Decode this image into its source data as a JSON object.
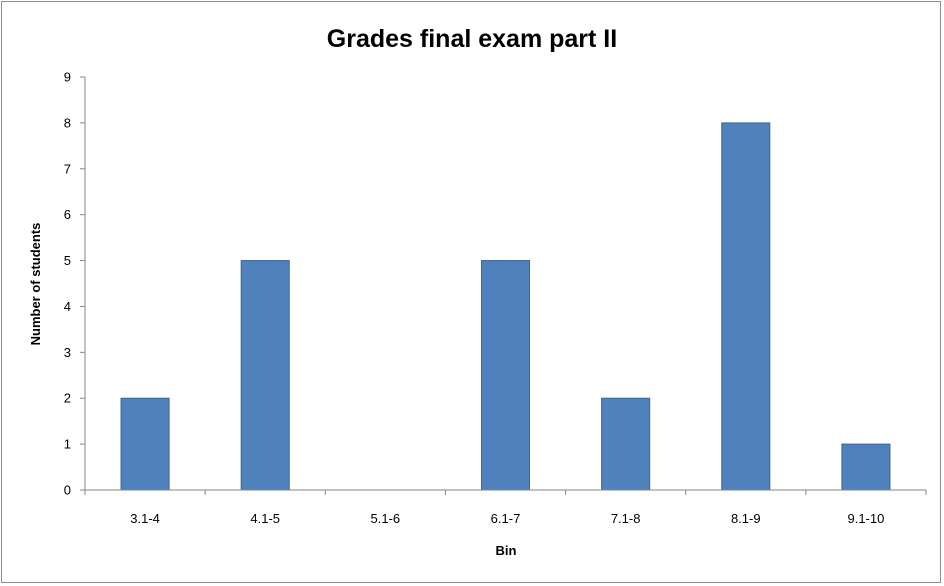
{
  "chart_data": {
    "type": "bar",
    "title": "Grades final exam part II",
    "xlabel": "Bin",
    "ylabel": "Number of students",
    "categories": [
      "3.1-4",
      "4.1-5",
      "5.1-6",
      "6.1-7",
      "7.1-8",
      "8.1-9",
      "9.1-10"
    ],
    "values": [
      2,
      5,
      0,
      5,
      2,
      8,
      1
    ],
    "ylim": [
      0,
      9
    ],
    "yticks": [
      "0",
      "1",
      "2",
      "3",
      "4",
      "5",
      "6",
      "7",
      "8",
      "9"
    ],
    "grid": false,
    "legend": "none",
    "bar_color": "#4f81bd",
    "bar_edge_color": "#3a6799"
  }
}
